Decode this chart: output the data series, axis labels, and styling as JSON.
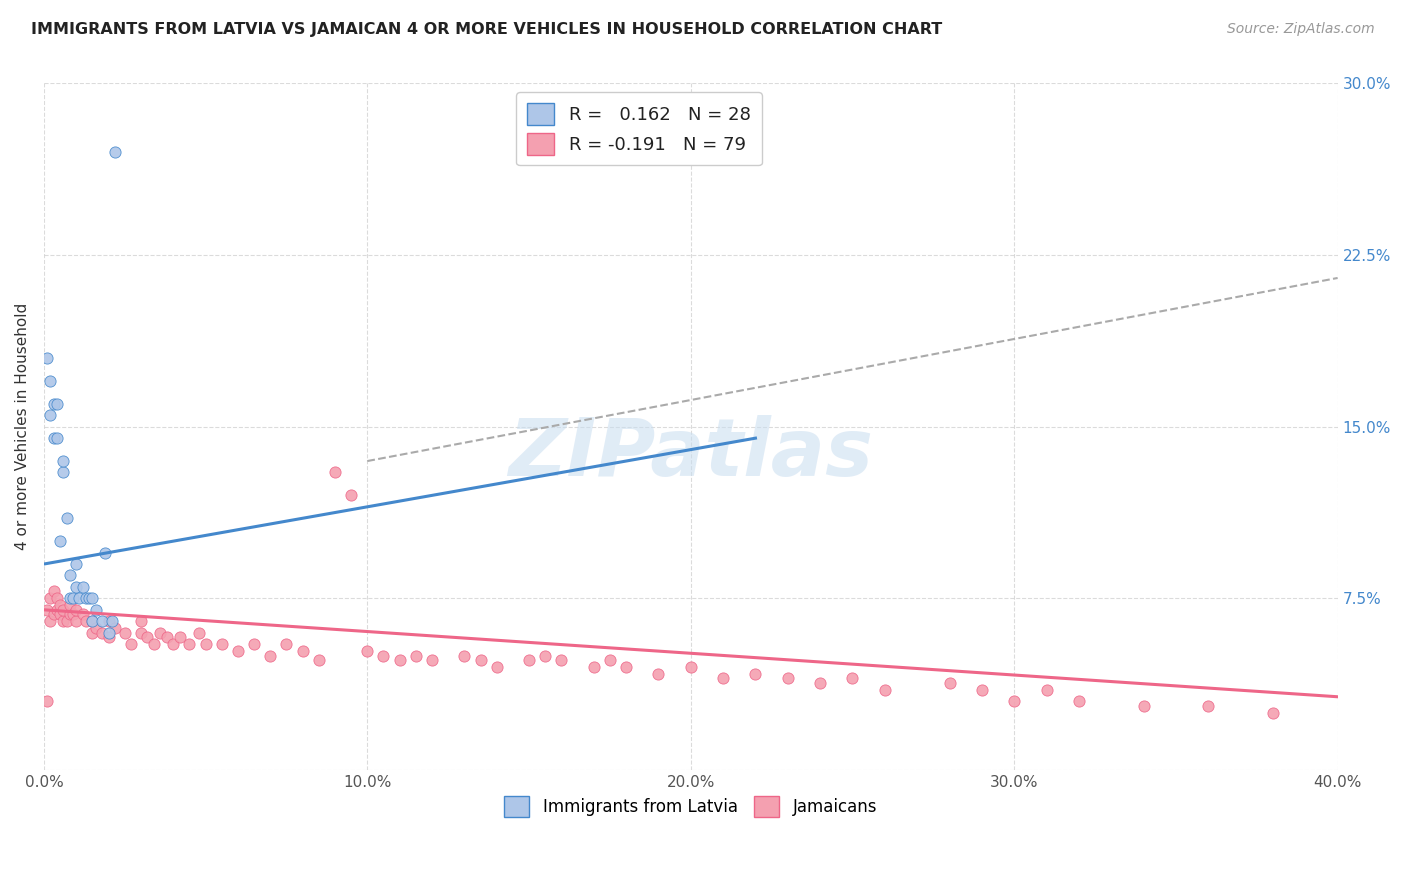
{
  "title": "IMMIGRANTS FROM LATVIA VS JAMAICAN 4 OR MORE VEHICLES IN HOUSEHOLD CORRELATION CHART",
  "source": "Source: ZipAtlas.com",
  "xlabel": "",
  "ylabel": "4 or more Vehicles in Household",
  "x_min": 0.0,
  "x_max": 0.4,
  "y_min": 0.0,
  "y_max": 0.3,
  "x_ticks": [
    0.0,
    0.1,
    0.2,
    0.3,
    0.4
  ],
  "x_tick_labels": [
    "0.0%",
    "10.0%",
    "20.0%",
    "30.0%",
    "40.0%"
  ],
  "y_ticks": [
    0.0,
    0.075,
    0.15,
    0.225,
    0.3
  ],
  "y_tick_labels": [
    "",
    "7.5%",
    "15.0%",
    "22.5%",
    "30.0%"
  ],
  "grid_color": "#cccccc",
  "background_color": "#ffffff",
  "latvia_color": "#aec6e8",
  "jamaica_color": "#f4a0b0",
  "latvia_line_color": "#4488cc",
  "jamaica_line_color": "#ee6688",
  "dashed_line_color": "#aaaaaa",
  "R_latvia": 0.162,
  "N_latvia": 28,
  "R_jamaica": -0.191,
  "N_jamaica": 79,
  "watermark": "ZIPatlas",
  "latvia_x": [
    0.001,
    0.002,
    0.002,
    0.003,
    0.003,
    0.004,
    0.004,
    0.005,
    0.006,
    0.006,
    0.007,
    0.008,
    0.008,
    0.009,
    0.01,
    0.01,
    0.011,
    0.012,
    0.013,
    0.014,
    0.015,
    0.015,
    0.016,
    0.018,
    0.019,
    0.02,
    0.021,
    0.022
  ],
  "latvia_y": [
    0.18,
    0.155,
    0.17,
    0.16,
    0.145,
    0.16,
    0.145,
    0.1,
    0.13,
    0.135,
    0.11,
    0.075,
    0.085,
    0.075,
    0.09,
    0.08,
    0.075,
    0.08,
    0.075,
    0.075,
    0.075,
    0.065,
    0.07,
    0.065,
    0.095,
    0.06,
    0.065,
    0.27
  ],
  "latvia_line_x": [
    0.0,
    0.22
  ],
  "latvia_line_y": [
    0.09,
    0.145
  ],
  "dashed_line_x": [
    0.1,
    0.4
  ],
  "dashed_line_y": [
    0.135,
    0.215
  ],
  "jamaica_x": [
    0.001,
    0.001,
    0.002,
    0.002,
    0.003,
    0.003,
    0.004,
    0.004,
    0.005,
    0.005,
    0.006,
    0.006,
    0.007,
    0.008,
    0.008,
    0.009,
    0.01,
    0.01,
    0.012,
    0.013,
    0.015,
    0.015,
    0.016,
    0.018,
    0.02,
    0.02,
    0.022,
    0.025,
    0.027,
    0.03,
    0.03,
    0.032,
    0.034,
    0.036,
    0.038,
    0.04,
    0.042,
    0.045,
    0.048,
    0.05,
    0.055,
    0.06,
    0.065,
    0.07,
    0.075,
    0.08,
    0.085,
    0.09,
    0.095,
    0.1,
    0.105,
    0.11,
    0.115,
    0.12,
    0.13,
    0.135,
    0.14,
    0.15,
    0.155,
    0.16,
    0.17,
    0.175,
    0.18,
    0.19,
    0.2,
    0.21,
    0.22,
    0.23,
    0.24,
    0.25,
    0.26,
    0.28,
    0.29,
    0.3,
    0.31,
    0.32,
    0.34,
    0.36,
    0.38
  ],
  "jamaica_y": [
    0.03,
    0.07,
    0.065,
    0.075,
    0.068,
    0.078,
    0.07,
    0.075,
    0.068,
    0.072,
    0.065,
    0.07,
    0.065,
    0.068,
    0.072,
    0.068,
    0.065,
    0.07,
    0.068,
    0.065,
    0.06,
    0.065,
    0.062,
    0.06,
    0.058,
    0.065,
    0.062,
    0.06,
    0.055,
    0.06,
    0.065,
    0.058,
    0.055,
    0.06,
    0.058,
    0.055,
    0.058,
    0.055,
    0.06,
    0.055,
    0.055,
    0.052,
    0.055,
    0.05,
    0.055,
    0.052,
    0.048,
    0.13,
    0.12,
    0.052,
    0.05,
    0.048,
    0.05,
    0.048,
    0.05,
    0.048,
    0.045,
    0.048,
    0.05,
    0.048,
    0.045,
    0.048,
    0.045,
    0.042,
    0.045,
    0.04,
    0.042,
    0.04,
    0.038,
    0.04,
    0.035,
    0.038,
    0.035,
    0.03,
    0.035,
    0.03,
    0.028,
    0.028,
    0.025
  ],
  "jamaica_line_x": [
    0.0,
    0.4
  ],
  "jamaica_line_y": [
    0.07,
    0.032
  ]
}
